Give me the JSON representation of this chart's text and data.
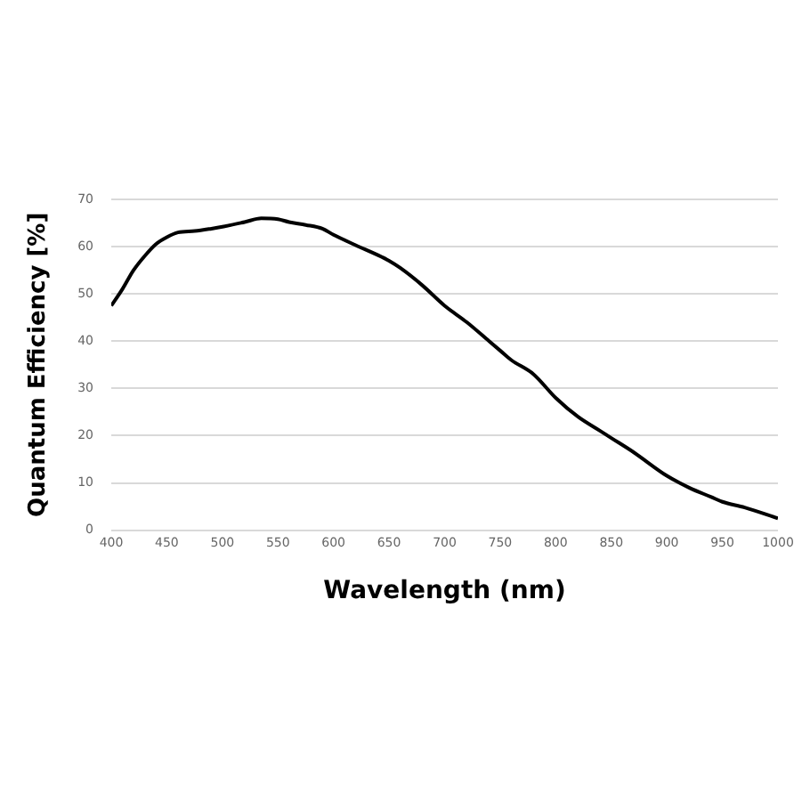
{
  "chart_data": {
    "type": "line",
    "xlabel": "Wavelength (nm)",
    "ylabel": "Quantum Efficiency [%]",
    "x": [
      400,
      410,
      420,
      430,
      440,
      450,
      460,
      475,
      490,
      500,
      520,
      535,
      550,
      560,
      575,
      590,
      600,
      620,
      640,
      650,
      660,
      680,
      700,
      720,
      740,
      750,
      760,
      780,
      800,
      820,
      840,
      850,
      870,
      900,
      920,
      940,
      950,
      970,
      1000
    ],
    "series": [
      {
        "color": "#000000",
        "values": [
          47.5,
          51,
          55,
          58,
          60.5,
          62,
          63,
          63.3,
          63.8,
          64.2,
          65.2,
          66,
          65.8,
          65.2,
          64.6,
          63.8,
          62.5,
          60.3,
          58.2,
          57,
          55.5,
          51.8,
          47.5,
          44,
          40,
          38,
          36,
          33,
          28,
          24,
          21,
          19.5,
          16.5,
          11.5,
          9,
          7,
          6,
          4.8,
          2.5
        ]
      }
    ],
    "xlim": [
      400,
      1000
    ],
    "xticks": [
      400,
      450,
      500,
      550,
      600,
      650,
      700,
      750,
      800,
      850,
      900,
      950,
      1000
    ],
    "ylim": [
      0,
      70
    ],
    "yticks": [
      0,
      10,
      20,
      30,
      40,
      50,
      60,
      70
    ],
    "grid": "y",
    "legend": false,
    "marker": "none",
    "line_style": "solid"
  }
}
